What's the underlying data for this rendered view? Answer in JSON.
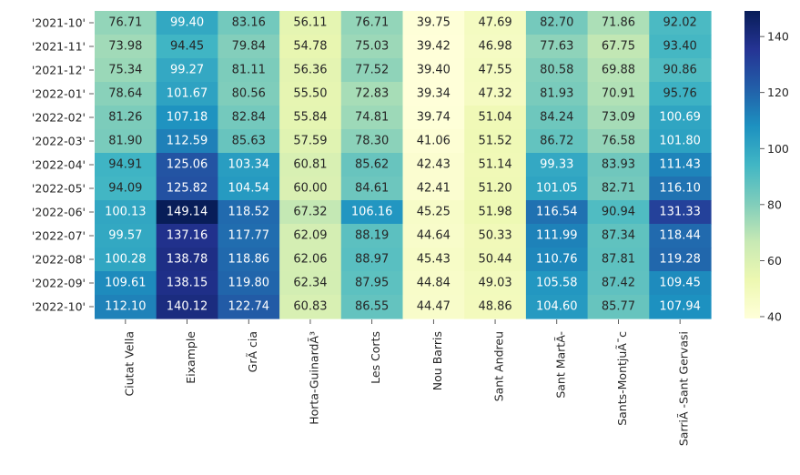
{
  "chart_data": {
    "type": "heatmap",
    "colormap": "YlGnBu",
    "rows": [
      "'2021-10'",
      "'2021-11'",
      "'2021-12'",
      "'2022-01'",
      "'2022-02'",
      "'2022-03'",
      "'2022-04'",
      "'2022-05'",
      "'2022-06'",
      "'2022-07'",
      "'2022-08'",
      "'2022-09'",
      "'2022-10'"
    ],
    "columns": [
      "Ciutat Vella",
      "Eixample",
      "GrÃ cia",
      "Horta-GuinardÃ³",
      "Les Corts",
      "Nou Barris",
      "Sant Andreu",
      "Sant MartÃ-",
      "Sants-MontjuÃ¯c",
      "SarriÃ -Sant Gervasi"
    ],
    "values": [
      [
        76.71,
        99.4,
        83.16,
        56.11,
        76.71,
        39.75,
        47.69,
        82.7,
        71.86,
        92.02
      ],
      [
        73.98,
        94.45,
        79.84,
        54.78,
        75.03,
        39.42,
        46.98,
        77.63,
        67.75,
        93.4
      ],
      [
        75.34,
        99.27,
        81.11,
        56.36,
        77.52,
        39.4,
        47.55,
        80.58,
        69.88,
        90.86
      ],
      [
        78.64,
        101.67,
        80.56,
        55.5,
        72.83,
        39.34,
        47.32,
        81.93,
        70.91,
        95.76
      ],
      [
        81.26,
        107.18,
        82.84,
        55.84,
        74.81,
        39.74,
        51.04,
        84.24,
        73.09,
        100.69
      ],
      [
        81.9,
        112.59,
        85.63,
        57.59,
        78.3,
        41.06,
        51.52,
        86.72,
        76.58,
        101.8
      ],
      [
        94.91,
        125.06,
        103.34,
        60.81,
        85.62,
        42.43,
        51.14,
        99.33,
        83.93,
        111.43
      ],
      [
        94.09,
        125.82,
        104.54,
        60.0,
        84.61,
        42.41,
        51.2,
        101.05,
        82.71,
        116.1
      ],
      [
        100.13,
        149.14,
        118.52,
        67.32,
        106.16,
        45.25,
        51.98,
        116.54,
        90.94,
        131.33
      ],
      [
        99.57,
        137.16,
        117.77,
        62.09,
        88.19,
        44.64,
        50.33,
        111.99,
        87.34,
        118.44
      ],
      [
        100.28,
        138.78,
        118.86,
        62.06,
        88.97,
        45.43,
        50.44,
        110.76,
        87.81,
        119.28
      ],
      [
        109.61,
        138.15,
        119.8,
        62.34,
        87.95,
        44.84,
        49.03,
        105.58,
        87.42,
        109.45
      ],
      [
        112.1,
        140.12,
        122.74,
        60.83,
        86.55,
        44.47,
        48.86,
        104.6,
        85.77,
        107.94
      ]
    ],
    "annotation_format": "0.00",
    "vmin": 39.34,
    "vmax": 149.14,
    "colorbar_ticks": [
      40,
      60,
      80,
      100,
      120,
      140
    ],
    "title": "",
    "xlabel": "",
    "ylabel": ""
  }
}
